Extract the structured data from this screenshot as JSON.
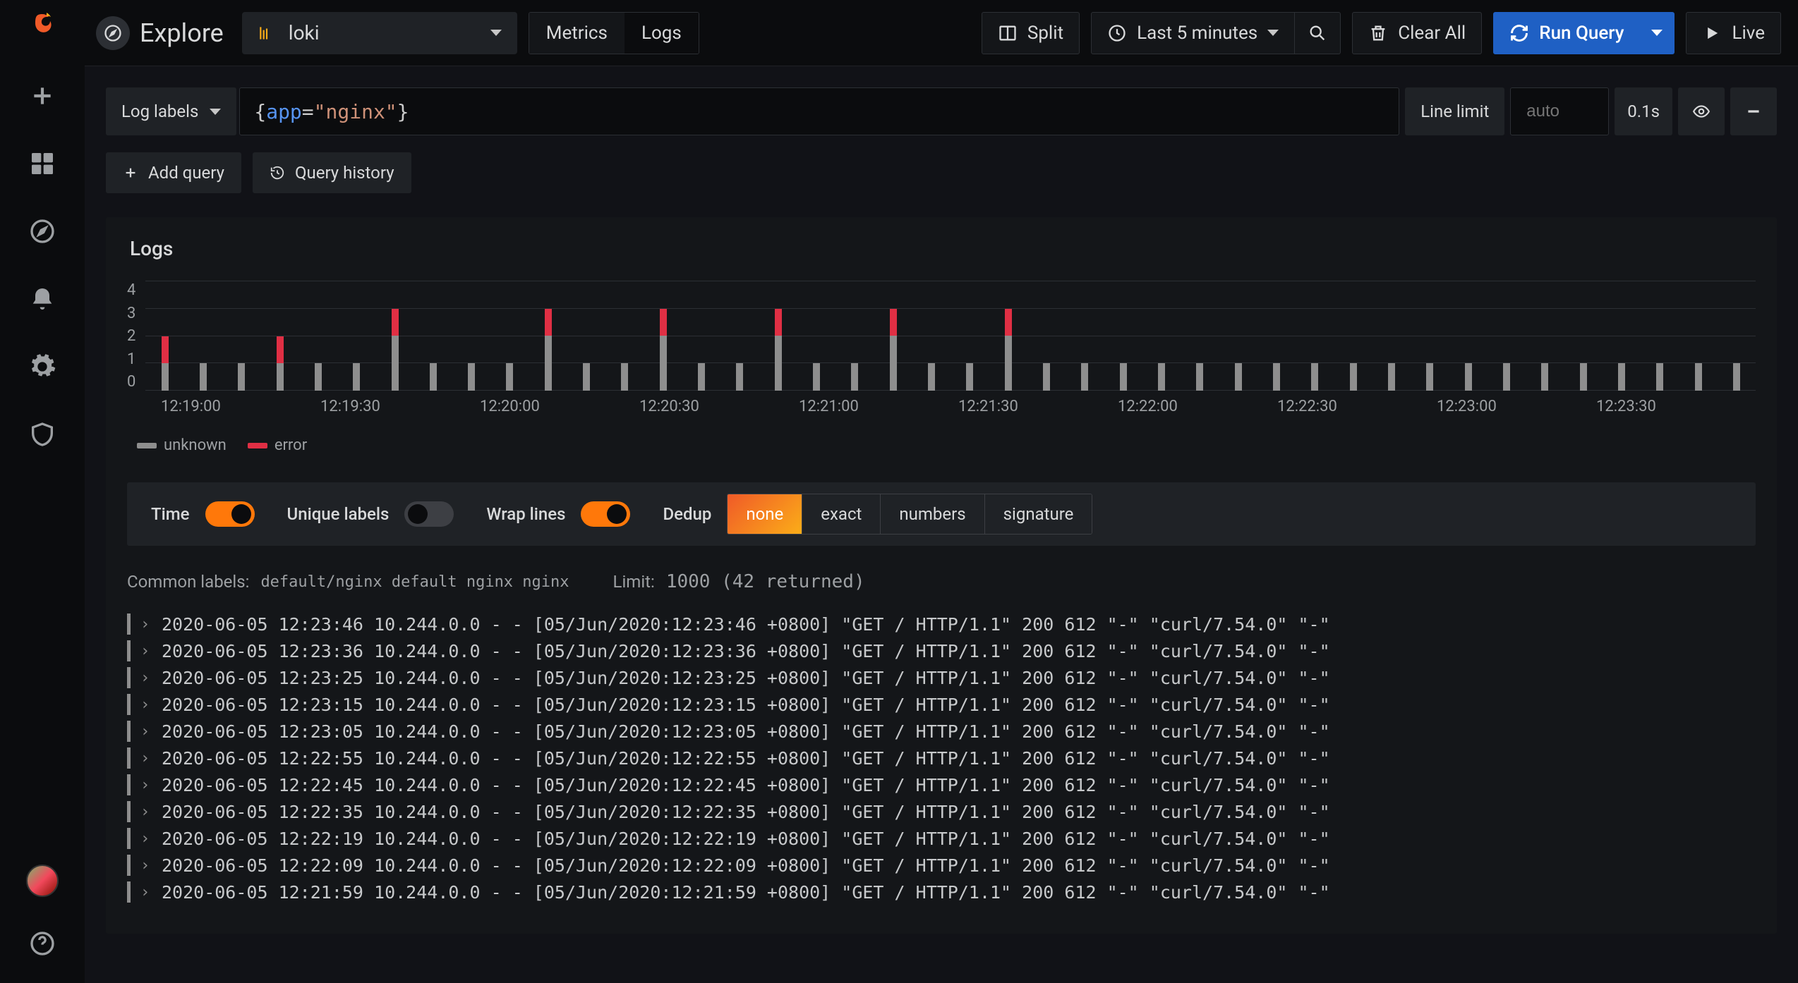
{
  "topbar": {
    "title": "Explore",
    "datasource": "loki",
    "tabs": {
      "metrics": "Metrics",
      "logs": "Logs",
      "active": "Logs"
    },
    "split": "Split",
    "timerange": "Last 5 minutes",
    "clear_all": "Clear All",
    "run_query": "Run Query",
    "live": "Live"
  },
  "query": {
    "log_labels_btn": "Log labels",
    "tokens": {
      "open": "{",
      "key": "app",
      "eq": "=",
      "val": "\"nginx\"",
      "close": "}"
    },
    "line_limit_label": "Line limit",
    "line_limit_placeholder": "auto",
    "duration": "0.1s",
    "add_query": "Add query",
    "query_history": "Query history"
  },
  "logs_panel": {
    "title": "Logs",
    "y_ticks": [
      "4",
      "3",
      "2",
      "1",
      "0"
    ],
    "y_max": 4,
    "x_ticks": [
      "12:19:00",
      "12:19:30",
      "12:20:00",
      "12:20:30",
      "12:21:00",
      "12:21:30",
      "12:22:00",
      "12:22:30",
      "12:23:00",
      "12:23:30"
    ],
    "legend": [
      {
        "label": "unknown",
        "color": "#8e8e8e"
      },
      {
        "label": "error",
        "color": "#e02f44"
      }
    ],
    "bars": [
      {
        "unknown": 1,
        "error": 1
      },
      {
        "unknown": 1,
        "error": 0
      },
      {
        "unknown": 1,
        "error": 0
      },
      {
        "unknown": 1,
        "error": 1
      },
      {
        "unknown": 1,
        "error": 0
      },
      {
        "unknown": 1,
        "error": 0
      },
      {
        "unknown": 2,
        "error": 1
      },
      {
        "unknown": 1,
        "error": 0
      },
      {
        "unknown": 1,
        "error": 0
      },
      {
        "unknown": 1,
        "error": 0
      },
      {
        "unknown": 2,
        "error": 1
      },
      {
        "unknown": 1,
        "error": 0
      },
      {
        "unknown": 1,
        "error": 0
      },
      {
        "unknown": 2,
        "error": 1
      },
      {
        "unknown": 1,
        "error": 0
      },
      {
        "unknown": 1,
        "error": 0
      },
      {
        "unknown": 2,
        "error": 1
      },
      {
        "unknown": 1,
        "error": 0
      },
      {
        "unknown": 1,
        "error": 0
      },
      {
        "unknown": 2,
        "error": 1
      },
      {
        "unknown": 1,
        "error": 0
      },
      {
        "unknown": 1,
        "error": 0
      },
      {
        "unknown": 2,
        "error": 1
      },
      {
        "unknown": 1,
        "error": 0
      },
      {
        "unknown": 1,
        "error": 0
      },
      {
        "unknown": 1,
        "error": 0
      },
      {
        "unknown": 1,
        "error": 0
      },
      {
        "unknown": 1,
        "error": 0
      },
      {
        "unknown": 1,
        "error": 0
      },
      {
        "unknown": 1,
        "error": 0
      },
      {
        "unknown": 1,
        "error": 0
      },
      {
        "unknown": 1,
        "error": 0
      },
      {
        "unknown": 1,
        "error": 0
      },
      {
        "unknown": 1,
        "error": 0
      },
      {
        "unknown": 1,
        "error": 0
      },
      {
        "unknown": 1,
        "error": 0
      },
      {
        "unknown": 1,
        "error": 0
      },
      {
        "unknown": 1,
        "error": 0
      },
      {
        "unknown": 1,
        "error": 0
      },
      {
        "unknown": 1,
        "error": 0
      },
      {
        "unknown": 1,
        "error": 0
      },
      {
        "unknown": 1,
        "error": 0
      }
    ]
  },
  "controls": {
    "time_label": "Time",
    "time_on": true,
    "unique_label": "Unique labels",
    "unique_on": false,
    "wrap_label": "Wrap lines",
    "wrap_on": true,
    "dedup_label": "Dedup",
    "dedup_options": [
      "none",
      "exact",
      "numbers",
      "signature"
    ],
    "dedup_active": "none"
  },
  "meta": {
    "common_labels_label": "Common labels:",
    "common_labels": "default/nginx default nginx nginx",
    "limit_label": "Limit:",
    "limit_value": "1000 (42 returned)"
  },
  "log_rows": [
    "2020-06-05 12:23:46 10.244.0.0 - - [05/Jun/2020:12:23:46 +0800] \"GET / HTTP/1.1\" 200 612 \"-\" \"curl/7.54.0\" \"-\"",
    "2020-06-05 12:23:36 10.244.0.0 - - [05/Jun/2020:12:23:36 +0800] \"GET / HTTP/1.1\" 200 612 \"-\" \"curl/7.54.0\" \"-\"",
    "2020-06-05 12:23:25 10.244.0.0 - - [05/Jun/2020:12:23:25 +0800] \"GET / HTTP/1.1\" 200 612 \"-\" \"curl/7.54.0\" \"-\"",
    "2020-06-05 12:23:15 10.244.0.0 - - [05/Jun/2020:12:23:15 +0800] \"GET / HTTP/1.1\" 200 612 \"-\" \"curl/7.54.0\" \"-\"",
    "2020-06-05 12:23:05 10.244.0.0 - - [05/Jun/2020:12:23:05 +0800] \"GET / HTTP/1.1\" 200 612 \"-\" \"curl/7.54.0\" \"-\"",
    "2020-06-05 12:22:55 10.244.0.0 - - [05/Jun/2020:12:22:55 +0800] \"GET / HTTP/1.1\" 200 612 \"-\" \"curl/7.54.0\" \"-\"",
    "2020-06-05 12:22:45 10.244.0.0 - - [05/Jun/2020:12:22:45 +0800] \"GET / HTTP/1.1\" 200 612 \"-\" \"curl/7.54.0\" \"-\"",
    "2020-06-05 12:22:35 10.244.0.0 - - [05/Jun/2020:12:22:35 +0800] \"GET / HTTP/1.1\" 200 612 \"-\" \"curl/7.54.0\" \"-\"",
    "2020-06-05 12:22:19 10.244.0.0 - - [05/Jun/2020:12:22:19 +0800] \"GET / HTTP/1.1\" 200 612 \"-\" \"curl/7.54.0\" \"-\"",
    "2020-06-05 12:22:09 10.244.0.0 - - [05/Jun/2020:12:22:09 +0800] \"GET / HTTP/1.1\" 200 612 \"-\" \"curl/7.54.0\" \"-\"",
    "2020-06-05 12:21:59 10.244.0.0 - - [05/Jun/2020:12:21:59 +0800] \"GET / HTTP/1.1\" 200 612 \"-\" \"curl/7.54.0\" \"-\""
  ]
}
